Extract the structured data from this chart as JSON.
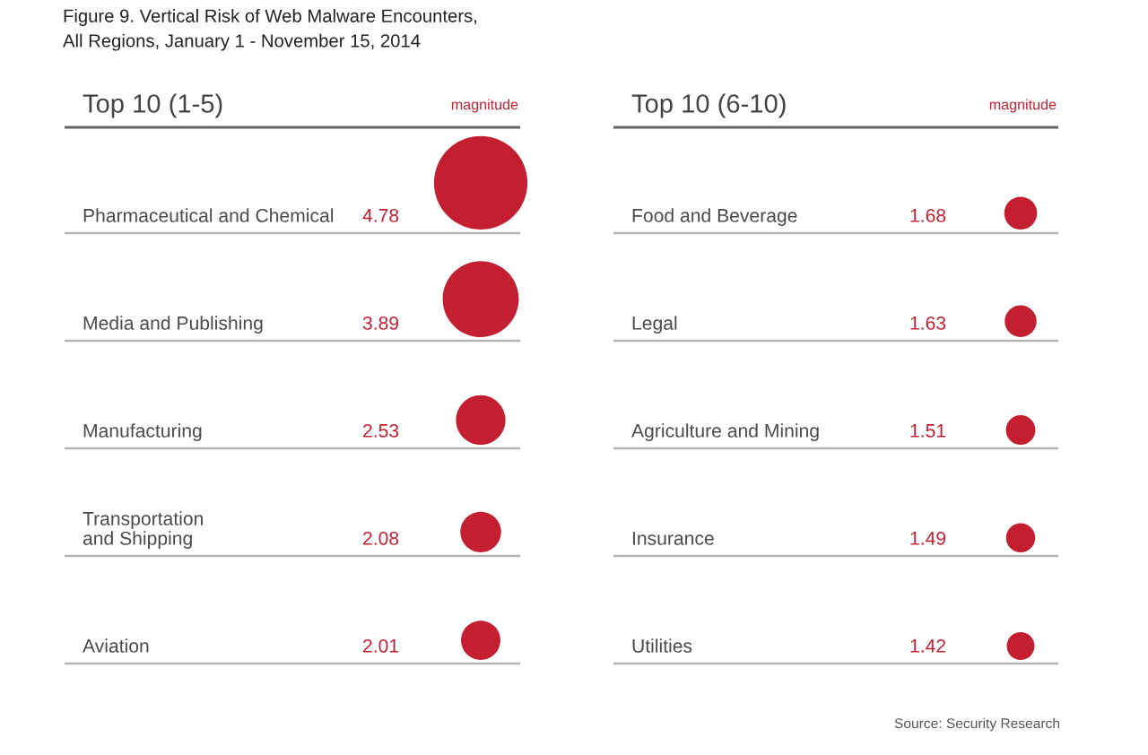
{
  "chart_data": [
    {
      "type": "other",
      "title": "Figure 9. Vertical Risk of Web Malware Encounters,\nAll Regions, January 1 - November 15, 2014",
      "subtitle": "Top 10 (1-5)",
      "categories": [
        "Pharmaceutical and Chemical",
        "Media and Publishing",
        "Manufacturing",
        "Transportation\nand Shipping",
        "Aviation"
      ],
      "values": [
        4.78,
        3.89,
        2.53,
        2.08,
        2.01
      ],
      "color": "#c41f30",
      "data_labels": true,
      "annotations": [
        "magnitude"
      ]
    },
    {
      "type": "other",
      "subtitle": "Top 10 (6-10)",
      "categories": [
        "Food and Beverage",
        "Legal",
        "Agriculture and Mining",
        "Insurance",
        "Utilities"
      ],
      "values": [
        1.68,
        1.63,
        1.51,
        1.49,
        1.42
      ],
      "color": "#c41f30",
      "data_labels": true,
      "annotations": [
        "magnitude",
        "Source: Security Research"
      ]
    }
  ]
}
